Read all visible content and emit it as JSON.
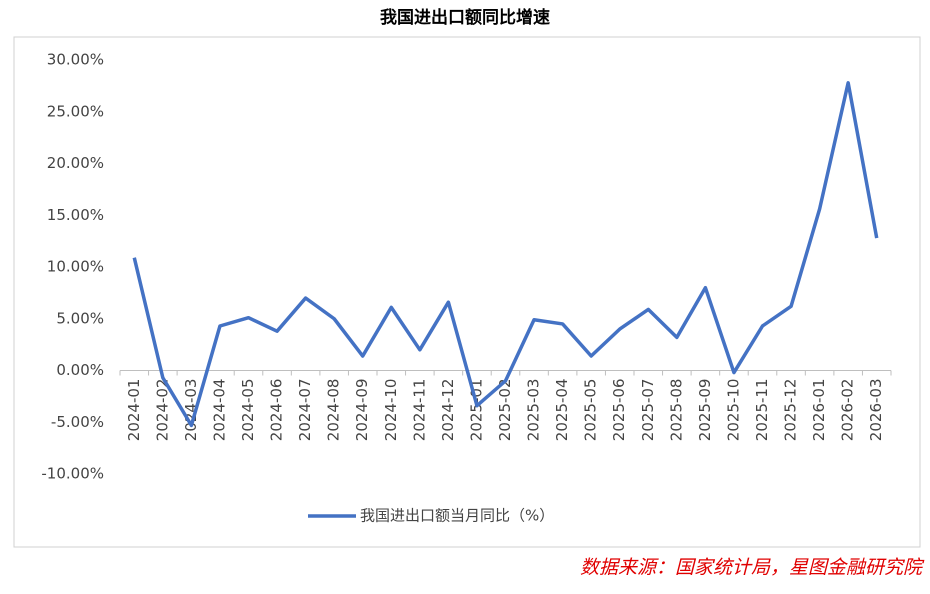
{
  "chart_data": {
    "type": "line",
    "title": "我国进出口额同比增速",
    "categories": [
      "2024-01",
      "2024-02",
      "2024-03",
      "2024-04",
      "2024-05",
      "2024-06",
      "2024-07",
      "2024-08",
      "2024-09",
      "2024-10",
      "2024-11",
      "2024-12",
      "2025-01",
      "2025-02",
      "2025-03",
      "2025-04",
      "2025-05",
      "2025-06",
      "2025-07",
      "2025-08",
      "2025-09",
      "2025-10",
      "2025-11",
      "2025-12",
      "2026-01",
      "2026-02",
      "2026-03"
    ],
    "series": [
      {
        "name": "我国进出口额当月同比（%）",
        "color": "#4472c4",
        "values": [
          10.9,
          -0.7,
          -5.3,
          4.3,
          5.1,
          3.8,
          7.0,
          5.0,
          1.4,
          6.1,
          2.0,
          6.6,
          -3.4,
          -1.0,
          4.9,
          4.5,
          1.4,
          4.0,
          5.9,
          3.2,
          8.0,
          -0.2,
          4.3,
          6.2,
          15.6,
          27.8,
          12.8
        ]
      }
    ],
    "ylim": [
      -10,
      30
    ],
    "yticks": [
      {
        "value": -10,
        "label": "-10.00%"
      },
      {
        "value": -5,
        "label": "-5.00%"
      },
      {
        "value": 0,
        "label": "0.00%"
      },
      {
        "value": 5,
        "label": "5.00%"
      },
      {
        "value": 10,
        "label": "10.00%"
      },
      {
        "value": 15,
        "label": "15.00%"
      },
      {
        "value": 20,
        "label": "20.00%"
      },
      {
        "value": 25,
        "label": "25.00%"
      },
      {
        "value": 30,
        "label": "30.00%"
      }
    ],
    "source": "数据来源：国家统计局，星图金融研究院"
  }
}
